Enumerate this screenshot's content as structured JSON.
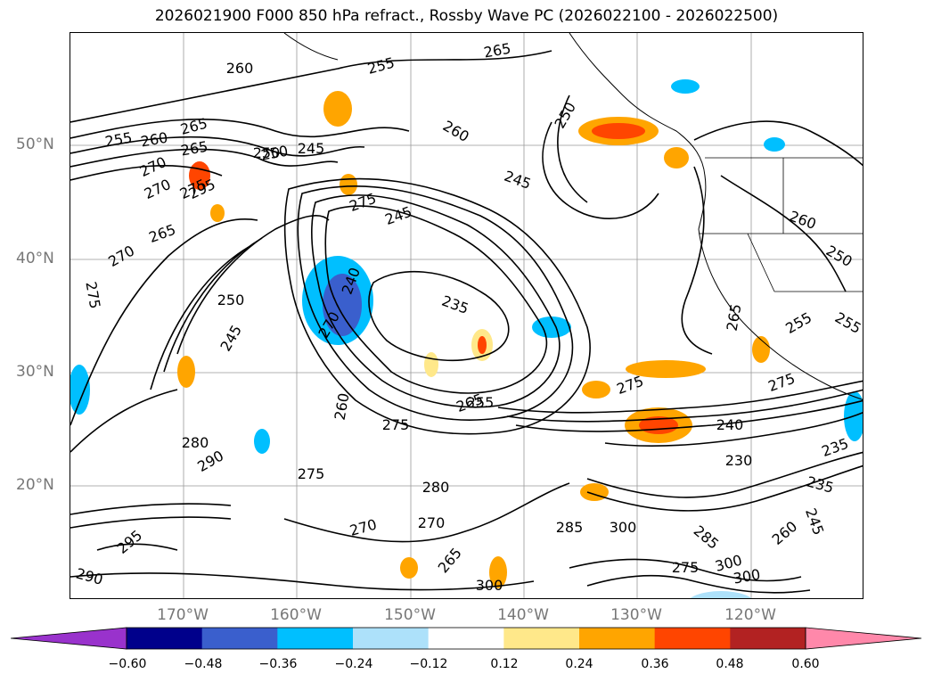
{
  "title": "2026021900 F000 850 hPa refract., Rossby Wave PC (2026022100 - 2026022500)",
  "lat_labels": [
    "50°N",
    "40°N",
    "30°N",
    "20°N"
  ],
  "lon_labels": [
    "170°W",
    "160°W",
    "150°W",
    "140°W",
    "130°W",
    "120°W"
  ],
  "colorbar": {
    "ticks": [
      "−0.60",
      "−0.48",
      "−0.36",
      "−0.24",
      "−0.12",
      "0.12",
      "0.24",
      "0.36",
      "0.48",
      "0.60"
    ],
    "colors": [
      "#9932CC",
      "#00008B",
      "#3A5FCD",
      "#00BFFF",
      "#ADE1FA",
      "#FFFFFF",
      "#FFE88A",
      "#FFA500",
      "#FF4500",
      "#B22222",
      "#FF88AA"
    ]
  },
  "contour_labels": [
    "260",
    "265",
    "255",
    "265",
    "250",
    "255",
    "260",
    "265",
    "270",
    "275",
    "270",
    "295",
    "250",
    "245",
    "275",
    "245",
    "240",
    "235",
    "250",
    "260",
    "245",
    "265",
    "270",
    "275",
    "260",
    "255",
    "265",
    "250",
    "245",
    "270",
    "260",
    "255",
    "275",
    "265",
    "240",
    "230",
    "235",
    "245",
    "280",
    "290",
    "275",
    "270",
    "275",
    "280",
    "285",
    "300",
    "290",
    "295",
    "300",
    "275",
    "300",
    "270",
    "285",
    "300",
    "265",
    "275",
    "255",
    "250",
    "260",
    "235"
  ],
  "contour_label_colors": {
    "line": "#000000"
  }
}
